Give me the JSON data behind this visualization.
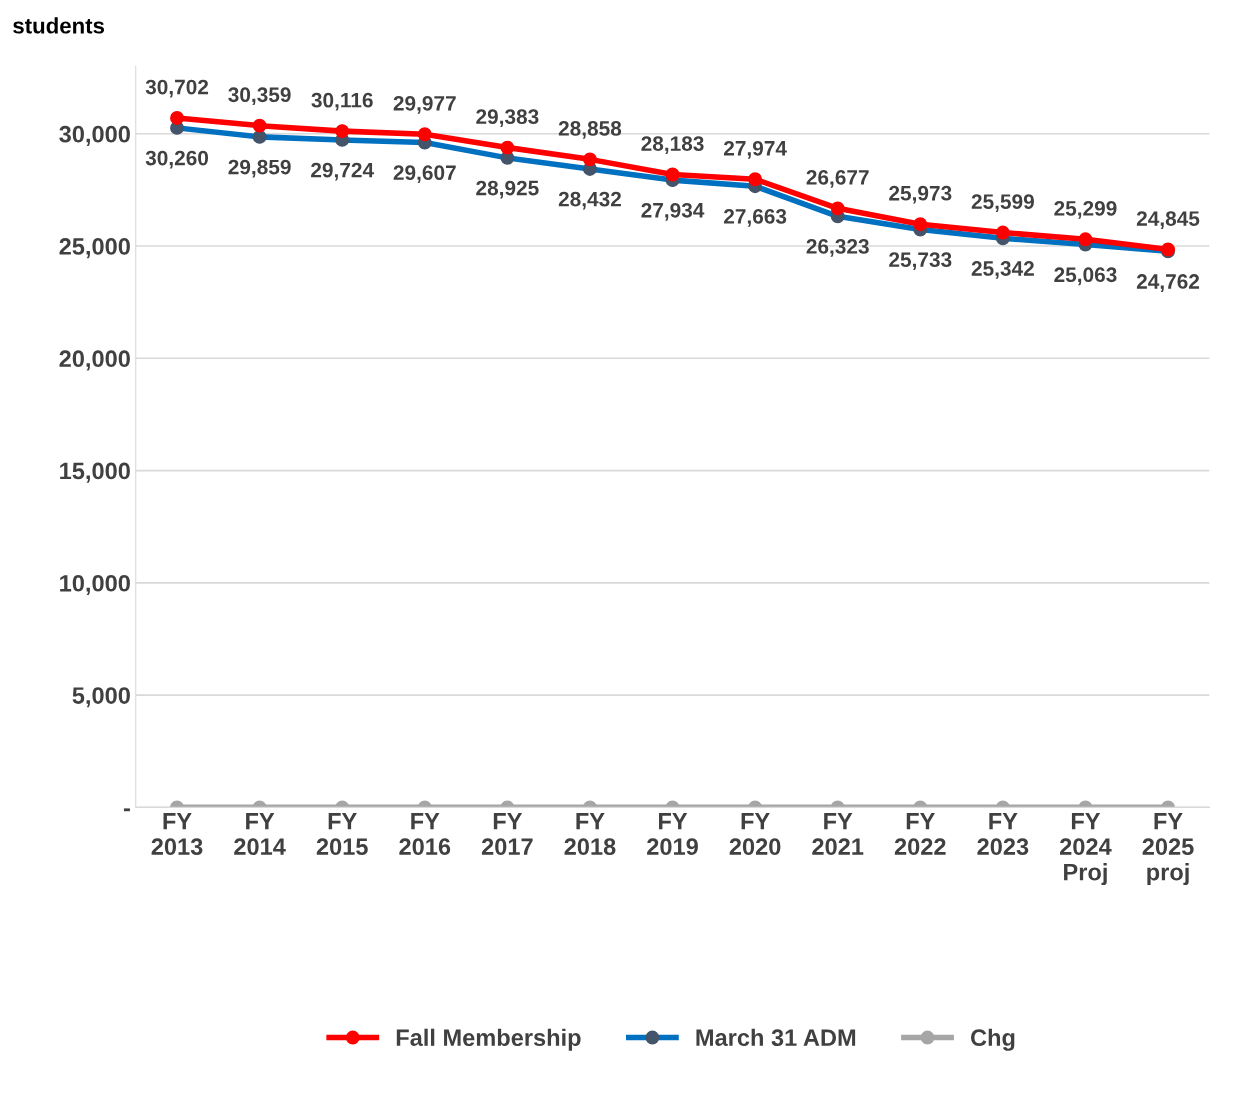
{
  "chart_data": {
    "type": "line",
    "ylabel": "students",
    "categories": [
      "FY\n2013",
      "FY\n2014",
      "FY\n2015",
      "FY\n2016",
      "FY\n2017",
      "FY\n2018",
      "FY\n2019",
      "FY\n2020",
      "FY\n2021",
      "FY\n2022",
      "FY\n2023",
      "FY\n2024\nProj",
      "FY\n2025\nproj"
    ],
    "series": [
      {
        "name": "Fall Membership",
        "color": "#ff0000",
        "values": [
          30702,
          30359,
          30116,
          29977,
          29383,
          28858,
          28183,
          27974,
          26677,
          25973,
          25599,
          25299,
          24845
        ],
        "value_labels": [
          "30,702",
          "30,359",
          "30,116",
          "29,977",
          "29,383",
          "28,858",
          "28,183",
          "27,974",
          "26,677",
          "25,973",
          "25,599",
          "25,299",
          "24,845"
        ]
      },
      {
        "name": "March 31 ADM",
        "color": "#0070c0",
        "values": [
          30260,
          29859,
          29724,
          29607,
          28925,
          28432,
          27934,
          27663,
          26323,
          25733,
          25342,
          25063,
          24762
        ],
        "value_labels": [
          "30,260",
          "29,859",
          "29,724",
          "29,607",
          "28,925",
          "28,432",
          "27,934",
          "27,663",
          "26,323",
          "25,733",
          "25,342",
          "25,063",
          "24,762"
        ]
      },
      {
        "name": "Chg",
        "color": "#a6a6a6",
        "values": [
          0,
          0,
          0,
          0,
          0,
          0,
          0,
          0,
          0,
          0,
          0,
          0,
          0
        ]
      }
    ],
    "ylim": [
      0,
      33000
    ],
    "yticks": [
      {
        "value": 0,
        "label": "-"
      },
      {
        "value": 5000,
        "label": "5,000"
      },
      {
        "value": 10000,
        "label": "10,000"
      },
      {
        "value": 15000,
        "label": "15,000"
      },
      {
        "value": 20000,
        "label": "20,000"
      },
      {
        "value": 25000,
        "label": "25,000"
      },
      {
        "value": 30000,
        "label": "30,000"
      }
    ],
    "grid": "y",
    "legend": "bottom",
    "marker": "circle",
    "line_style": "solid"
  }
}
